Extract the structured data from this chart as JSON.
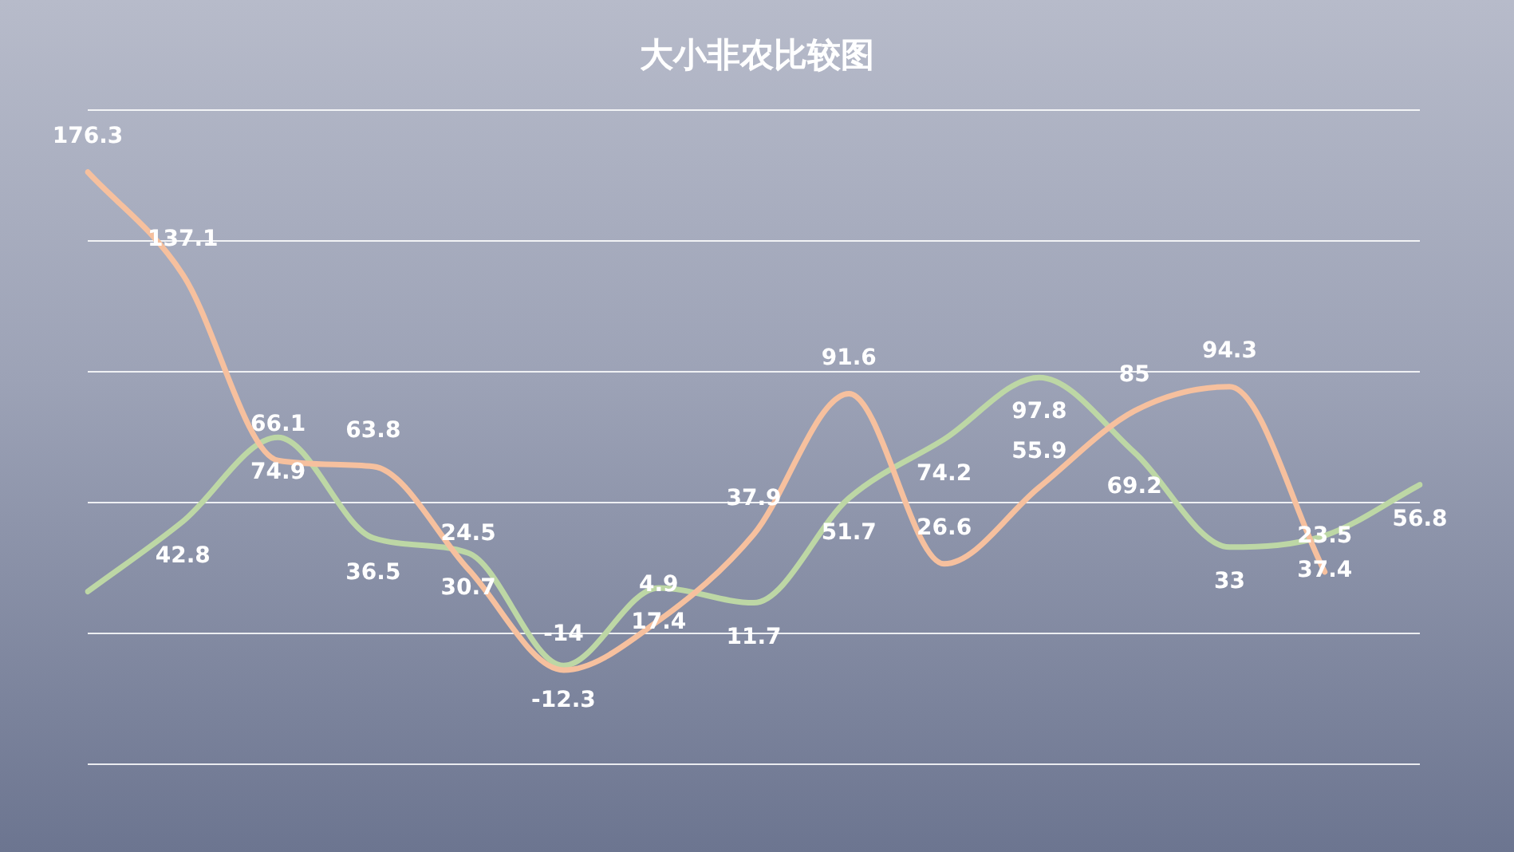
{
  "chart_data": {
    "type": "line",
    "title": "大小非农比较图",
    "categories": [
      null,
      null,
      null,
      null,
      null,
      null,
      null,
      null,
      null,
      null,
      null,
      null,
      null,
      null,
      null
    ],
    "series": [
      {
        "color": "#f6c09e",
        "values": [
          176.3,
          137.1,
          66.1,
          63.8,
          24.5,
          -14,
          4.9,
          37.9,
          91.6,
          26.6,
          55.9,
          85,
          94.3,
          23.5,
          null
        ],
        "value_labels": [
          "176.3",
          "137.1",
          "66.1",
          "63.8",
          "24.5",
          "-14",
          "4.9",
          "37.9",
          "91.6",
          "26.6",
          "55.9",
          "85",
          "94.3",
          "23.5",
          null
        ]
      },
      {
        "color": "#bdd7a5",
        "values": [
          16,
          42.8,
          74.9,
          36.5,
          30.7,
          -12.3,
          17.4,
          11.7,
          51.7,
          74.2,
          97.8,
          69.2,
          33,
          37.4,
          56.8
        ],
        "value_labels": [
          null,
          "42.8",
          "74.9",
          "36.5",
          "30.7",
          "-12.3",
          "17.4",
          "11.7",
          "51.7",
          "74.2",
          "97.8",
          "69.2",
          "33",
          "37.4",
          "56.8"
        ]
      }
    ],
    "ylim": [
      -50,
      200
    ],
    "yticks": [
      {
        "value": -50,
        "label": null
      },
      {
        "value": 0,
        "label": null
      },
      {
        "value": 50,
        "label": null
      },
      {
        "value": 100,
        "label": null
      },
      {
        "value": 150,
        "label": null
      },
      {
        "value": 200,
        "label": null
      }
    ],
    "grid": "y",
    "tick_labels": false,
    "marker": "none",
    "line_style": "solid"
  }
}
